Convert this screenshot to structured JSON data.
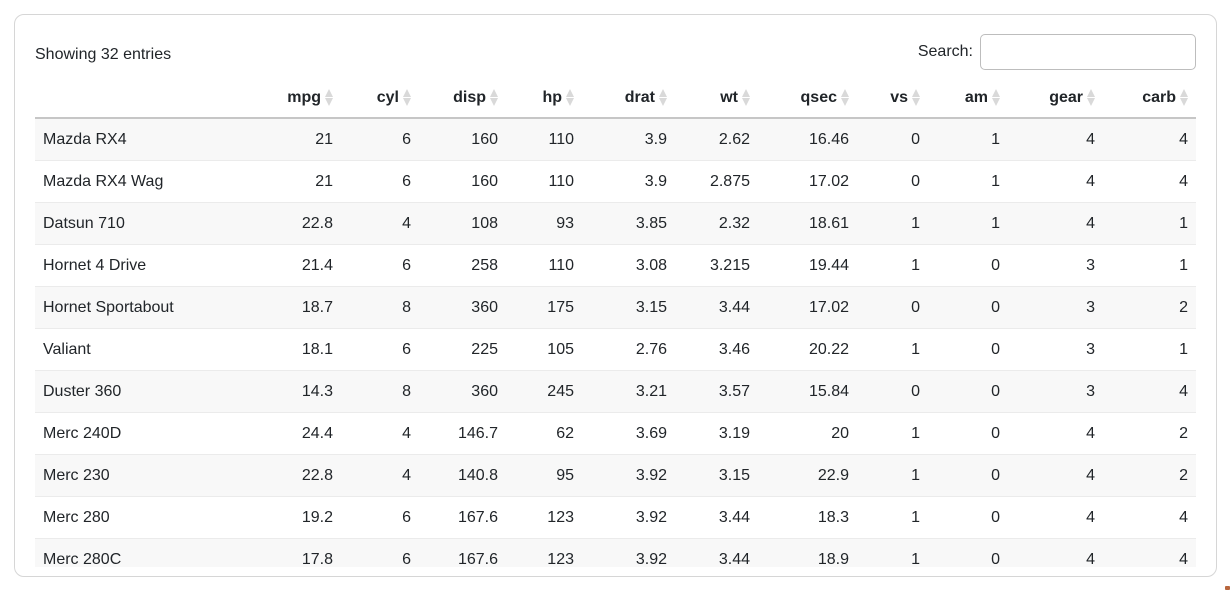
{
  "table": {
    "info": "Showing 32 entries",
    "columns": [
      "mpg",
      "cyl",
      "disp",
      "hp",
      "drat",
      "wt",
      "qsec",
      "vs",
      "am",
      "gear",
      "carb"
    ],
    "rows": [
      {
        "name": "Mazda RX4",
        "values": [
          "21",
          "6",
          "160",
          "110",
          "3.9",
          "2.62",
          "16.46",
          "0",
          "1",
          "4",
          "4"
        ]
      },
      {
        "name": "Mazda RX4 Wag",
        "values": [
          "21",
          "6",
          "160",
          "110",
          "3.9",
          "2.875",
          "17.02",
          "0",
          "1",
          "4",
          "4"
        ]
      },
      {
        "name": "Datsun 710",
        "values": [
          "22.8",
          "4",
          "108",
          "93",
          "3.85",
          "2.32",
          "18.61",
          "1",
          "1",
          "4",
          "1"
        ]
      },
      {
        "name": "Hornet 4 Drive",
        "values": [
          "21.4",
          "6",
          "258",
          "110",
          "3.08",
          "3.215",
          "19.44",
          "1",
          "0",
          "3",
          "1"
        ]
      },
      {
        "name": "Hornet Sportabout",
        "values": [
          "18.7",
          "8",
          "360",
          "175",
          "3.15",
          "3.44",
          "17.02",
          "0",
          "0",
          "3",
          "2"
        ]
      },
      {
        "name": "Valiant",
        "values": [
          "18.1",
          "6",
          "225",
          "105",
          "2.76",
          "3.46",
          "20.22",
          "1",
          "0",
          "3",
          "1"
        ]
      },
      {
        "name": "Duster 360",
        "values": [
          "14.3",
          "8",
          "360",
          "245",
          "3.21",
          "3.57",
          "15.84",
          "0",
          "0",
          "3",
          "4"
        ]
      },
      {
        "name": "Merc 240D",
        "values": [
          "24.4",
          "4",
          "146.7",
          "62",
          "3.69",
          "3.19",
          "20",
          "1",
          "0",
          "4",
          "2"
        ]
      },
      {
        "name": "Merc 230",
        "values": [
          "22.8",
          "4",
          "140.8",
          "95",
          "3.92",
          "3.15",
          "22.9",
          "1",
          "0",
          "4",
          "2"
        ]
      },
      {
        "name": "Merc 280",
        "values": [
          "19.2",
          "6",
          "167.6",
          "123",
          "3.92",
          "3.44",
          "18.3",
          "1",
          "0",
          "4",
          "4"
        ]
      },
      {
        "name": "Merc 280C",
        "values": [
          "17.8",
          "6",
          "167.6",
          "123",
          "3.92",
          "3.44",
          "18.9",
          "1",
          "0",
          "4",
          "4"
        ]
      }
    ]
  },
  "search": {
    "label": "Search:",
    "value": ""
  },
  "colors": {
    "stripe": "#f8f8f8",
    "row_border": "#ebebeb",
    "header_border": "#c6c6c6",
    "card_border": "#d6d6d6",
    "sort_icon": "#d9d9d9",
    "text": "#212529"
  }
}
